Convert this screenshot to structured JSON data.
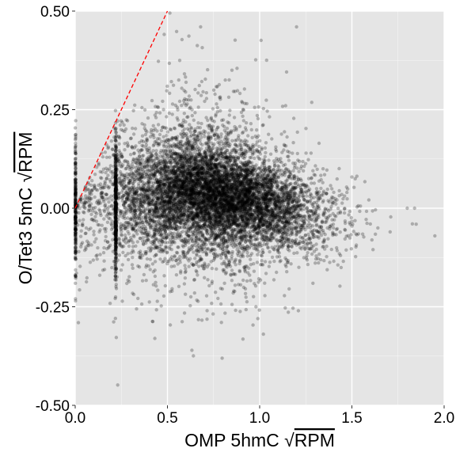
{
  "chart_data": {
    "type": "scatter",
    "title": "",
    "xlabel": {
      "prefix": "OMP 5hmC ",
      "radical": "√",
      "radicand": "RPM"
    },
    "ylabel": {
      "prefix": "O/Tet3 5mC ",
      "radical": "√",
      "radicand": "RPM"
    },
    "xlim": [
      0,
      2
    ],
    "ylim": [
      -0.5,
      0.5
    ],
    "x_ticks": [
      0,
      0.5,
      1,
      1.5,
      2
    ],
    "x_tick_labels": [
      "0.0",
      "0.5",
      "1.0",
      "1.5",
      "2.0"
    ],
    "y_ticks": [
      -0.5,
      -0.25,
      0,
      0.25,
      0.5
    ],
    "y_tick_labels": [
      "-0.50",
      "-0.25",
      "0.00",
      "0.25",
      "0.50"
    ],
    "grid": true,
    "background": "#e5e5e5",
    "grid_color": "#ffffff",
    "point_color": "#000000",
    "point_alpha": 0.25,
    "reference_line": {
      "style": "dashed",
      "color": "#ff0000",
      "slope": 1,
      "intercept": 0
    },
    "series": [
      {
        "point_density": {
          "x_center": 0.75,
          "y_center": 0.02,
          "x_spread": 0.28,
          "y_spread": 0.07,
          "approx_points": 9000
        },
        "dense_columns_x": [
          0.0,
          0.22
        ],
        "sample_points": [
          [
            0.05,
            0.01
          ],
          [
            0.1,
            0.0
          ],
          [
            0.22,
            0.05
          ],
          [
            0.22,
            -0.02
          ],
          [
            0.3,
            0.07
          ],
          [
            0.4,
            0.12
          ],
          [
            0.5,
            0.08
          ],
          [
            0.6,
            0.15
          ],
          [
            0.7,
            0.05
          ],
          [
            0.8,
            0.02
          ],
          [
            0.9,
            -0.01
          ],
          [
            1.0,
            -0.03
          ],
          [
            1.1,
            -0.02
          ],
          [
            1.2,
            -0.04
          ],
          [
            1.4,
            -0.05
          ],
          [
            1.6,
            -0.04
          ],
          [
            1.8,
            0.0
          ],
          [
            1.84,
            0.0
          ],
          [
            1.95,
            -0.07
          ],
          [
            0.98,
            -0.25
          ],
          [
            0.99,
            -0.28
          ],
          [
            1.21,
            -0.26
          ],
          [
            0.85,
            0.35
          ],
          [
            0.68,
            0.46
          ],
          [
            1.2,
            0.46
          ]
        ]
      }
    ]
  }
}
